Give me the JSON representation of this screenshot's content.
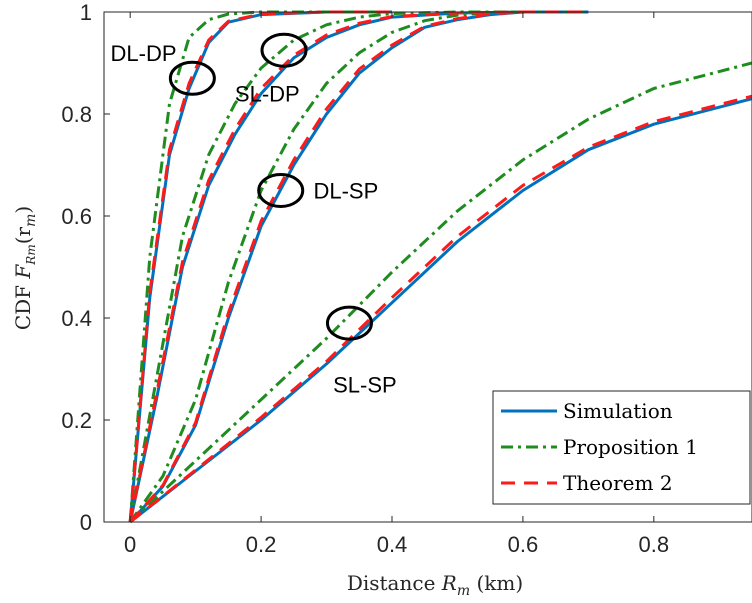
{
  "chart_data": {
    "type": "line",
    "xlabel": "Distance R_m (km)",
    "xlabel_parts": {
      "prefix": "Distance ",
      "math": "R",
      "sub": "m",
      "suffix": " (km)"
    },
    "ylabel": "CDF F_{R_m}(r_m)",
    "ylabel_parts": {
      "prefix": "CDF ",
      "math": "F",
      "sub": "Rm",
      "suffix": "(r",
      "sub2": "m",
      "close": ")"
    },
    "xlim": [
      -0.04,
      0.95
    ],
    "ylim": [
      0,
      1
    ],
    "x_ticks": [
      0,
      0.2,
      0.4,
      0.6,
      0.8
    ],
    "x_tick_labels": [
      "0",
      "0.2",
      "0.4",
      "0.6",
      "0.8"
    ],
    "y_ticks": [
      0,
      0.2,
      0.4,
      0.6,
      0.8,
      1
    ],
    "y_tick_labels": [
      "0",
      "0.2",
      "0.4",
      "0.6",
      "0.8",
      "1"
    ],
    "grid": false,
    "legend_position": "bottom-right",
    "legend": [
      {
        "label": "Simulation",
        "color": "#0072BD",
        "dash": "solid"
      },
      {
        "label": "Proposition 1",
        "color": "#1E8C1E",
        "dash": "dashdot"
      },
      {
        "label": "Theorem 2",
        "color": "#FF1A1A",
        "dash": "dashed"
      }
    ],
    "series": [
      {
        "group": "DL-DP",
        "style": "Simulation",
        "x": [
          0,
          0.03,
          0.06,
          0.09,
          0.12,
          0.15,
          0.2,
          0.3,
          0.4
        ],
        "y": [
          0,
          0.44,
          0.72,
          0.85,
          0.94,
          0.98,
          0.995,
          1.0,
          1.0
        ]
      },
      {
        "group": "DL-DP",
        "style": "Proposition 1",
        "x": [
          0,
          0.03,
          0.06,
          0.09,
          0.12,
          0.15,
          0.2,
          0.3,
          0.4
        ],
        "y": [
          0,
          0.52,
          0.82,
          0.95,
          0.985,
          0.996,
          1.0,
          1.0,
          1.0
        ]
      },
      {
        "group": "DL-DP",
        "style": "Theorem 2",
        "x": [
          0,
          0.03,
          0.06,
          0.09,
          0.12,
          0.15,
          0.2,
          0.3,
          0.4
        ],
        "y": [
          0,
          0.45,
          0.73,
          0.86,
          0.945,
          0.982,
          0.996,
          1.0,
          1.0
        ]
      },
      {
        "group": "SL-DP",
        "style": "Simulation",
        "x": [
          0,
          0.04,
          0.08,
          0.12,
          0.16,
          0.2,
          0.25,
          0.3,
          0.35,
          0.4,
          0.5,
          0.6
        ],
        "y": [
          0,
          0.24,
          0.5,
          0.66,
          0.76,
          0.84,
          0.91,
          0.95,
          0.975,
          0.99,
          0.998,
          1.0
        ]
      },
      {
        "group": "SL-DP",
        "style": "Proposition 1",
        "x": [
          0,
          0.04,
          0.08,
          0.12,
          0.16,
          0.2,
          0.25,
          0.3,
          0.35,
          0.4,
          0.5,
          0.6
        ],
        "y": [
          0,
          0.28,
          0.56,
          0.72,
          0.82,
          0.89,
          0.945,
          0.975,
          0.99,
          0.997,
          1.0,
          1.0
        ]
      },
      {
        "group": "SL-DP",
        "style": "Theorem 2",
        "x": [
          0,
          0.04,
          0.08,
          0.12,
          0.16,
          0.2,
          0.25,
          0.3,
          0.35,
          0.4,
          0.5,
          0.6
        ],
        "y": [
          0,
          0.25,
          0.51,
          0.67,
          0.77,
          0.85,
          0.915,
          0.955,
          0.978,
          0.991,
          0.998,
          1.0
        ]
      },
      {
        "group": "DL-SP",
        "style": "Simulation",
        "x": [
          0,
          0.05,
          0.1,
          0.15,
          0.2,
          0.25,
          0.3,
          0.35,
          0.4,
          0.45,
          0.5,
          0.55,
          0.6,
          0.7
        ],
        "y": [
          0,
          0.07,
          0.19,
          0.4,
          0.58,
          0.7,
          0.8,
          0.88,
          0.93,
          0.97,
          0.985,
          0.995,
          1.0,
          1.0
        ]
      },
      {
        "group": "DL-SP",
        "style": "Proposition 1",
        "x": [
          0,
          0.05,
          0.1,
          0.15,
          0.2,
          0.25,
          0.3,
          0.35,
          0.4,
          0.45,
          0.5,
          0.55,
          0.6,
          0.7
        ],
        "y": [
          0,
          0.09,
          0.24,
          0.47,
          0.65,
          0.77,
          0.86,
          0.92,
          0.96,
          0.983,
          0.994,
          0.999,
          1.0,
          1.0
        ]
      },
      {
        "group": "DL-SP",
        "style": "Theorem 2",
        "x": [
          0,
          0.05,
          0.1,
          0.15,
          0.2,
          0.25,
          0.3,
          0.35,
          0.4,
          0.45,
          0.5,
          0.55,
          0.6,
          0.7
        ],
        "y": [
          0,
          0.072,
          0.195,
          0.41,
          0.59,
          0.71,
          0.81,
          0.888,
          0.935,
          0.972,
          0.987,
          0.996,
          1.0,
          1.0
        ]
      },
      {
        "group": "SL-SP",
        "style": "Simulation",
        "x": [
          0,
          0.1,
          0.2,
          0.3,
          0.4,
          0.5,
          0.6,
          0.7,
          0.8,
          0.95
        ],
        "y": [
          0,
          0.1,
          0.2,
          0.31,
          0.43,
          0.55,
          0.65,
          0.73,
          0.78,
          0.83
        ]
      },
      {
        "group": "SL-SP",
        "style": "Proposition 1",
        "x": [
          0,
          0.1,
          0.2,
          0.3,
          0.4,
          0.5,
          0.6,
          0.7,
          0.8,
          0.95
        ],
        "y": [
          0,
          0.12,
          0.24,
          0.36,
          0.49,
          0.61,
          0.71,
          0.79,
          0.85,
          0.9
        ]
      },
      {
        "group": "SL-SP",
        "style": "Theorem 2",
        "x": [
          0,
          0.1,
          0.2,
          0.3,
          0.4,
          0.5,
          0.6,
          0.7,
          0.8,
          0.95
        ],
        "y": [
          0,
          0.102,
          0.205,
          0.315,
          0.44,
          0.56,
          0.66,
          0.735,
          0.785,
          0.835
        ]
      }
    ],
    "annotations": [
      {
        "text": "DL-DP",
        "ellipse_at": [
          0.095,
          0.87
        ],
        "label_at": [
          -0.03,
          0.92
        ],
        "anchor": "start"
      },
      {
        "text": "SL-DP",
        "ellipse_at": [
          0.235,
          0.925
        ],
        "label_at": [
          0.16,
          0.84
        ],
        "anchor": "start"
      },
      {
        "text": "DL-SP",
        "ellipse_at": [
          0.23,
          0.65
        ],
        "label_at": [
          0.28,
          0.65
        ],
        "anchor": "start"
      },
      {
        "text": "SL-SP",
        "ellipse_at": [
          0.335,
          0.39
        ],
        "label_at": [
          0.31,
          0.27
        ],
        "anchor": "start"
      }
    ]
  }
}
